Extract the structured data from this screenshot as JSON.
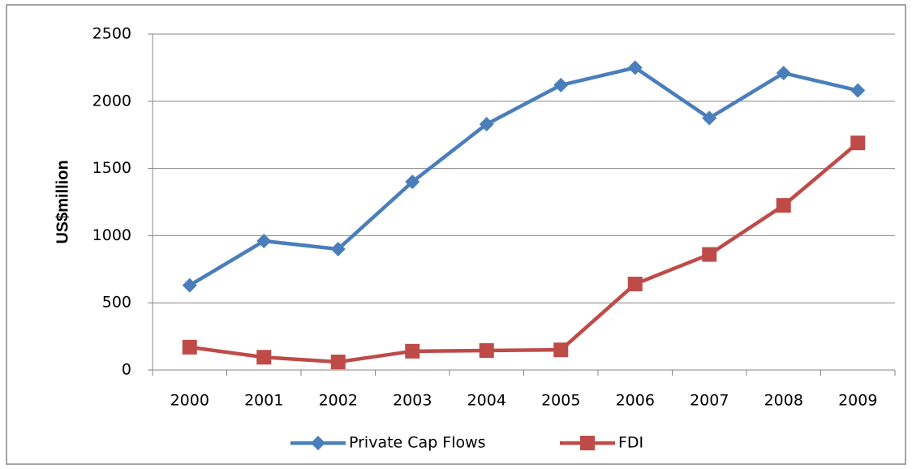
{
  "chart_data": {
    "type": "line",
    "y_label": "US$million",
    "categories": [
      "2000",
      "2001",
      "2002",
      "2003",
      "2004",
      "2005",
      "2006",
      "2007",
      "2008",
      "2009"
    ],
    "series": [
      {
        "name": "Private Cap Flows",
        "color": "#4a7ebb",
        "marker": "diamond",
        "values": [
          630,
          960,
          900,
          1400,
          1830,
          2120,
          2250,
          1875,
          2210,
          2080
        ]
      },
      {
        "name": "FDI",
        "color": "#be4b48",
        "marker": "square",
        "values": [
          170,
          95,
          60,
          140,
          145,
          150,
          640,
          860,
          1225,
          1690
        ]
      }
    ],
    "ylim": [
      0,
      2500
    ],
    "yticks": [
      0,
      500,
      1000,
      1500,
      2000,
      2500
    ],
    "grid": true,
    "legend": "bottom"
  }
}
